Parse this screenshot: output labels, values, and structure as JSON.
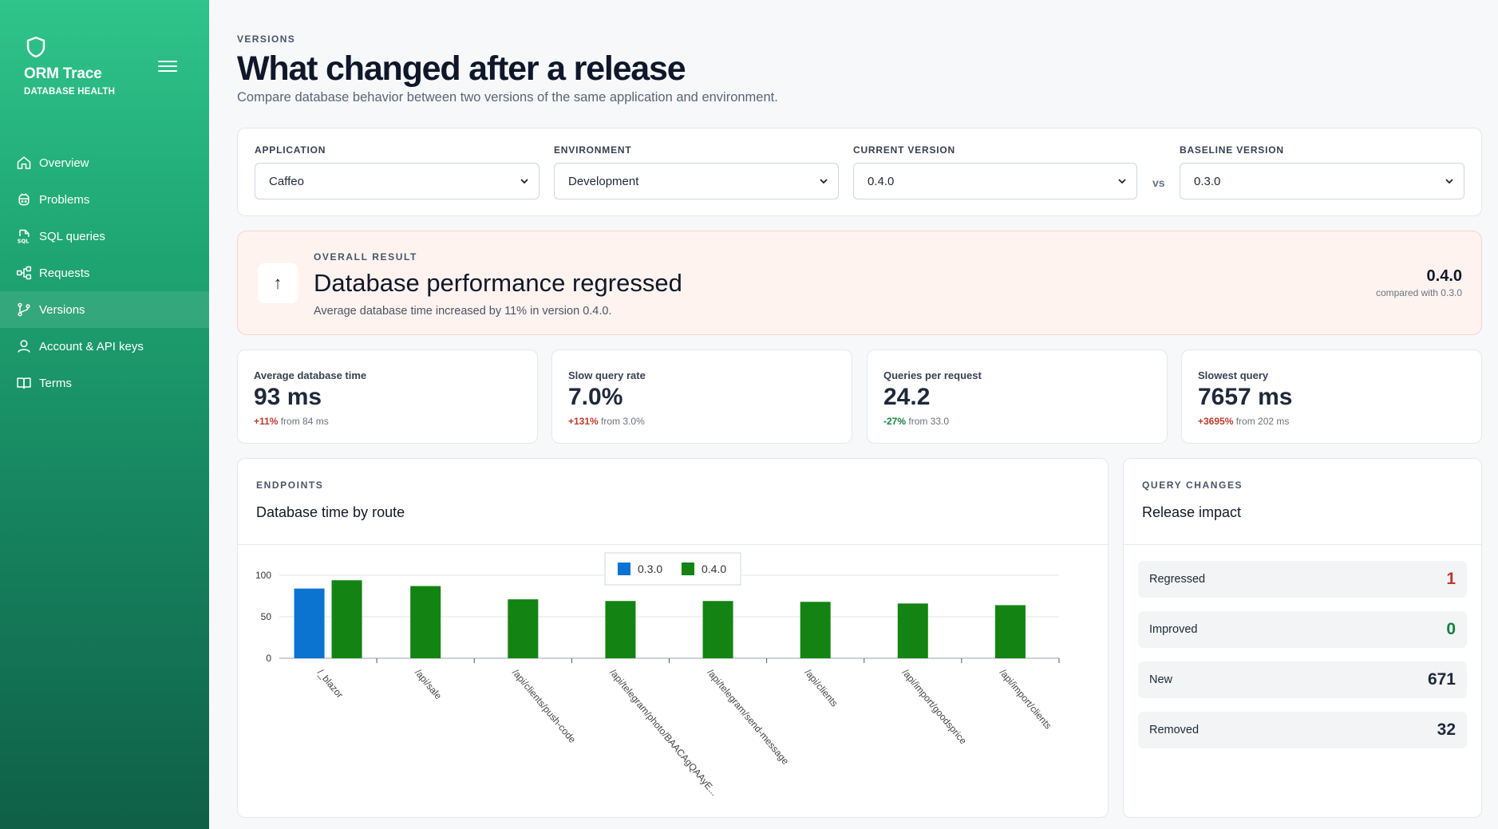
{
  "sidebar": {
    "brand_title": "ORM Trace",
    "brand_subtitle": "DATABASE HEALTH",
    "items": [
      {
        "label": "Overview",
        "icon": "home-icon"
      },
      {
        "label": "Problems",
        "icon": "bug-icon"
      },
      {
        "label": "SQL queries",
        "icon": "sql-file-icon"
      },
      {
        "label": "Requests",
        "icon": "diagram-icon"
      },
      {
        "label": "Versions",
        "icon": "git-branch-icon",
        "active": true
      },
      {
        "label": "Account & API keys",
        "icon": "user-icon"
      },
      {
        "label": "Terms",
        "icon": "book-icon"
      }
    ]
  },
  "header": {
    "eyebrow": "VERSIONS",
    "title": "What changed after a release",
    "subtitle": "Compare database behavior between two versions of the same application and environment."
  },
  "filters": {
    "application": {
      "label": "APPLICATION",
      "value": "Caffeo"
    },
    "environment": {
      "label": "ENVIRONMENT",
      "value": "Development"
    },
    "current_version": {
      "label": "CURRENT VERSION",
      "value": "0.4.0"
    },
    "vs": "vs",
    "baseline_version": {
      "label": "BASELINE VERSION",
      "value": "0.3.0"
    }
  },
  "result": {
    "eyebrow": "OVERALL RESULT",
    "icon": "↑",
    "title": "Database performance regressed",
    "description": "Average database time increased by 11% in version 0.4.0.",
    "version": "0.4.0",
    "compared_with": "compared with 0.3.0"
  },
  "kpis": [
    {
      "label": "Average database time",
      "value": "93 ms",
      "delta": "+11%",
      "from": "from 84 ms",
      "trend": "bad"
    },
    {
      "label": "Slow query rate",
      "value": "7.0%",
      "delta": "+131%",
      "from": "from 3.0%",
      "trend": "bad"
    },
    {
      "label": "Queries per request",
      "value": "24.2",
      "delta": "-27%",
      "from": "from 33.0",
      "trend": "good"
    },
    {
      "label": "Slowest query",
      "value": "7657 ms",
      "delta": "+3695%",
      "from": "from 202 ms",
      "trend": "bad"
    }
  ],
  "endpoints": {
    "eyebrow": "ENDPOINTS",
    "title": "Database time by route"
  },
  "impact": {
    "eyebrow": "QUERY CHANGES",
    "title": "Release impact",
    "rows": [
      {
        "label": "Regressed",
        "value": "1",
        "color": "#c0392b"
      },
      {
        "label": "Improved",
        "value": "0",
        "color": "#15803d"
      },
      {
        "label": "New",
        "value": "671",
        "color": "#1e293b"
      },
      {
        "label": "Removed",
        "value": "32",
        "color": "#1e293b"
      }
    ]
  },
  "colors": {
    "baseline": "#0b74d1",
    "current": "#138313",
    "accent": "#1fa673"
  },
  "chart_data": {
    "type": "bar",
    "categories": [
      "/_blazor",
      "/api/sale",
      "/api/clients/push-code",
      "/api/telegram/photo/BAACAgQAAyE...",
      "/api/telegram/send-message",
      "/api/clients",
      "/api/import/goodsprice",
      "/api/import/clients"
    ],
    "series": [
      {
        "name": "0.3.0",
        "values": [
          84,
          null,
          null,
          null,
          null,
          null,
          null,
          null
        ]
      },
      {
        "name": "0.4.0",
        "values": [
          94,
          87,
          71,
          69,
          69,
          68,
          66,
          64
        ]
      }
    ],
    "ylim": [
      0,
      100
    ],
    "yticks": [
      0,
      50,
      100
    ],
    "legend": "top-center",
    "grid": true
  }
}
